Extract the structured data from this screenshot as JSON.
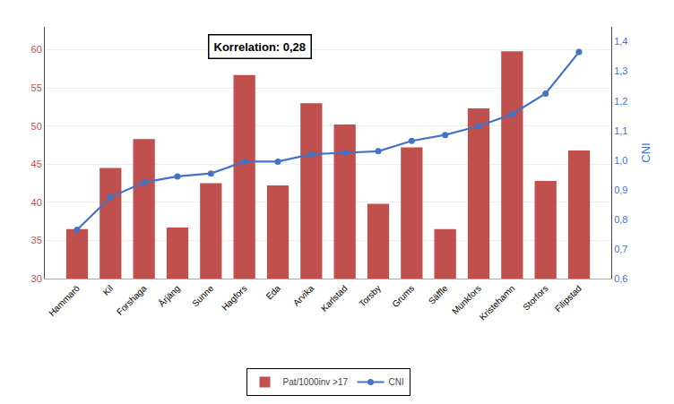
{
  "chart_data": {
    "type": "bar",
    "categories": [
      "Hammarö",
      "Kil",
      "Forshaga",
      "Årjäng",
      "Sunne",
      "Hagfors",
      "Eda",
      "Arvika",
      "Karlstad",
      "Torsby",
      "Grums",
      "Säffle",
      "Munkfors",
      "Kristehamn",
      "Storfors",
      "Filipstad"
    ],
    "series": [
      {
        "name": "Pat/1000inv >17",
        "type": "bar",
        "color": "#C0504D",
        "values": [
          36.5,
          44.5,
          48.3,
          36.7,
          42.5,
          56.7,
          42.2,
          53.0,
          50.2,
          39.8,
          47.2,
          36.5,
          52.3,
          59.8,
          42.8,
          46.8
        ]
      },
      {
        "name": "CNI",
        "type": "line",
        "axis": "y2",
        "color": "#4472C4",
        "marker": "circle",
        "line_style": "solid",
        "values": [
          0.765,
          0.875,
          0.925,
          0.945,
          0.955,
          0.995,
          0.995,
          1.02,
          1.025,
          1.03,
          1.065,
          1.085,
          1.115,
          1.155,
          1.225,
          1.365
        ]
      }
    ],
    "ylim": [
      30,
      63
    ],
    "yticks": [
      30,
      35,
      40,
      45,
      50,
      55,
      60
    ],
    "y2lim": [
      0.6,
      1.45
    ],
    "y2ticks": [
      {
        "value": 0.6,
        "label": "0,6"
      },
      {
        "value": 0.7,
        "label": "0,7"
      },
      {
        "value": 0.8,
        "label": "0,8"
      },
      {
        "value": 0.9,
        "label": "0,9"
      },
      {
        "value": 1.0,
        "label": "1,0"
      },
      {
        "value": 1.1,
        "label": "1,1"
      },
      {
        "value": 1.2,
        "label": "1,2"
      },
      {
        "value": 1.3,
        "label": "1,3"
      },
      {
        "value": 1.4,
        "label": "1,4"
      }
    ],
    "y2label": "CNI",
    "annotation": "Korrelation: 0,28",
    "grid": true,
    "legend": "bottom"
  }
}
